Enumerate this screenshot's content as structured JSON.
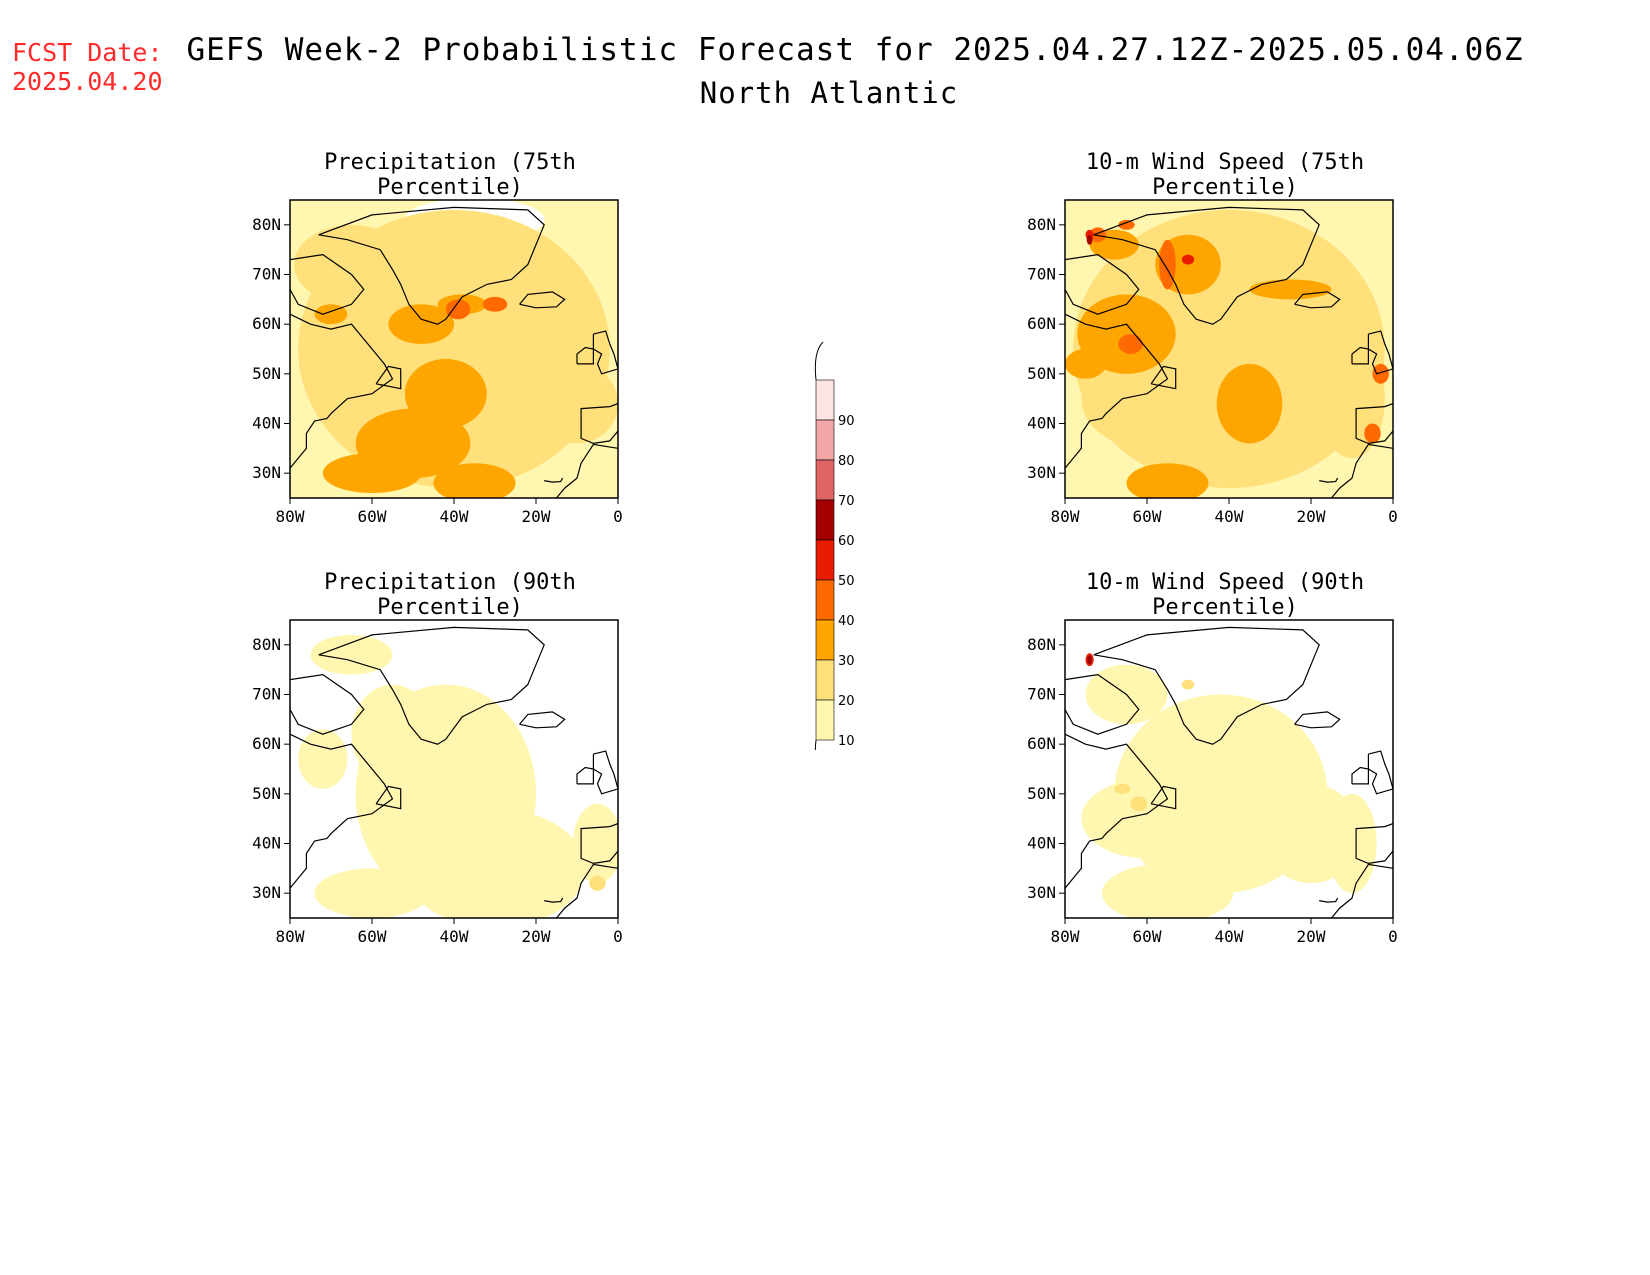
{
  "header": {
    "fcst_line1": "FCST Date:",
    "fcst_line2": "2025.04.20",
    "title": "GEFS Week-2 Probabilistic Forecast for 2025.04.27.12Z-2025.05.04.06Z",
    "subtitle": "North Atlantic"
  },
  "colors": {
    "accent_red": "#ff2a2a",
    "scale": [
      "#fff6b0",
      "#ffe07a",
      "#ffa500",
      "#ff6a00",
      "#e81c00",
      "#a50000",
      "#e06464",
      "#f2a6a6",
      "#ffe4e4"
    ]
  },
  "axes": {
    "lat_ticks": [
      "80N",
      "70N",
      "60N",
      "50N",
      "40N",
      "30N"
    ],
    "lon_ticks": [
      "80W",
      "60W",
      "40W",
      "20W",
      "0"
    ]
  },
  "panels": [
    {
      "title": "Precipitation (75th Percentile)",
      "variant": "p75"
    },
    {
      "title": "10-m Wind Speed (75th Percentile)",
      "variant": "w75"
    },
    {
      "title": "Precipitation (90th Percentile)",
      "variant": "p90"
    },
    {
      "title": "10-m Wind Speed (90th Percentile)",
      "variant": "w90"
    }
  ],
  "colorbar": {
    "labels": [
      "90",
      "80",
      "70",
      "60",
      "50",
      "40",
      "30",
      "20",
      "10"
    ]
  }
}
